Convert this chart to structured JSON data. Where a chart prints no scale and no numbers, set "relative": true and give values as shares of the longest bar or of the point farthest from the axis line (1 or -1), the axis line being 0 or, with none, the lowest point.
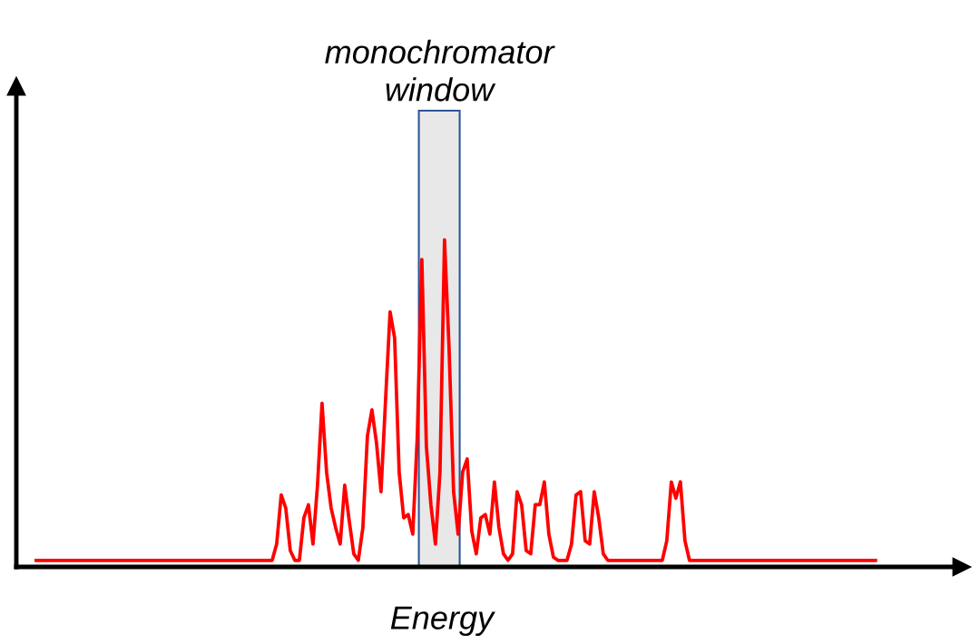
{
  "chart_data": {
    "type": "line",
    "relative": true,
    "xlabel": "Energy",
    "categories": [
      null,
      null,
      null,
      null,
      null,
      null,
      null,
      null,
      null,
      null,
      null,
      null,
      null,
      null,
      null,
      null,
      null,
      null,
      null,
      null,
      null,
      null,
      null,
      null,
      null,
      null,
      null,
      null,
      null,
      null,
      null,
      null,
      null,
      null,
      null,
      null,
      null,
      null,
      null,
      null,
      null,
      null,
      null,
      null,
      null,
      null,
      null,
      null,
      null,
      null,
      null,
      null,
      null,
      null,
      null,
      null,
      null,
      null,
      null,
      null,
      null,
      null,
      null,
      null,
      null,
      null,
      null,
      null,
      null,
      null,
      null,
      null,
      null,
      null,
      null,
      null,
      null,
      null,
      null,
      null,
      null,
      null,
      null,
      null,
      null,
      null,
      null,
      null,
      null,
      null,
      null,
      null,
      null,
      null,
      null,
      null,
      null,
      null,
      null,
      null,
      null,
      null,
      null,
      null,
      null,
      null,
      null,
      null,
      null,
      null,
      null,
      null,
      null,
      null,
      null,
      null,
      null,
      null,
      null,
      null,
      null,
      null,
      null,
      null,
      null,
      null,
      null,
      null,
      null,
      null,
      null,
      null,
      null,
      null,
      null,
      null,
      null,
      null,
      null,
      null,
      null,
      null,
      null,
      null,
      null,
      null,
      null,
      null,
      null,
      null,
      null,
      null,
      null,
      null,
      null,
      null,
      null,
      null,
      null,
      null,
      null,
      null,
      null,
      null,
      null,
      null,
      null,
      null,
      null,
      null,
      null,
      null,
      null,
      null,
      null,
      null,
      null,
      null,
      null,
      null,
      null,
      null,
      null,
      null,
      null,
      null
    ],
    "series": [
      {
        "color": "#ff0000",
        "values": [
          0.02,
          0.02,
          0.02,
          0.02,
          0.02,
          0.02,
          0.02,
          0.02,
          0.02,
          0.02,
          0.02,
          0.02,
          0.02,
          0.02,
          0.02,
          0.02,
          0.02,
          0.02,
          0.02,
          0.02,
          0.02,
          0.02,
          0.02,
          0.02,
          0.02,
          0.02,
          0.02,
          0.02,
          0.02,
          0.02,
          0.02,
          0.02,
          0.02,
          0.02,
          0.02,
          0.02,
          0.02,
          0.02,
          0.02,
          0.02,
          0.02,
          0.02,
          0.02,
          0.02,
          0.02,
          0.02,
          0.02,
          0.02,
          0.02,
          0.02,
          0.02,
          0.02,
          0.02,
          0.07,
          0.22,
          0.18,
          0.05,
          0.02,
          0.02,
          0.15,
          0.19,
          0.07,
          0.25,
          0.5,
          0.29,
          0.18,
          0.12,
          0.07,
          0.25,
          0.14,
          0.04,
          0.02,
          0.12,
          0.4,
          0.48,
          0.38,
          0.23,
          0.51,
          0.78,
          0.7,
          0.29,
          0.15,
          0.16,
          0.1,
          0.4,
          0.94,
          0.37,
          0.19,
          0.07,
          0.29,
          1.0,
          0.67,
          0.23,
          0.1,
          0.29,
          0.33,
          0.11,
          0.04,
          0.15,
          0.16,
          0.1,
          0.26,
          0.12,
          0.04,
          0.02,
          0.04,
          0.23,
          0.19,
          0.05,
          0.04,
          0.19,
          0.19,
          0.26,
          0.1,
          0.03,
          0.02,
          0.02,
          0.02,
          0.07,
          0.22,
          0.23,
          0.08,
          0.07,
          0.23,
          0.15,
          0.04,
          0.02,
          0.02,
          0.02,
          0.02,
          0.02,
          0.02,
          0.02,
          0.02,
          0.02,
          0.02,
          0.02,
          0.02,
          0.02,
          0.08,
          0.26,
          0.21,
          0.26,
          0.08,
          0.02,
          0.02,
          0.02,
          0.02,
          0.02,
          0.02,
          0.02,
          0.02,
          0.02,
          0.02,
          0.02,
          0.02,
          0.02,
          0.02,
          0.02,
          0.02,
          0.02,
          0.02,
          0.02,
          0.02,
          0.02,
          0.02,
          0.02,
          0.02,
          0.02,
          0.02,
          0.02,
          0.02,
          0.02,
          0.02,
          0.02,
          0.02,
          0.02,
          0.02,
          0.02,
          0.02,
          0.02,
          0.02,
          0.02,
          0.02,
          0.02,
          0.02
        ]
      }
    ],
    "annotations": [
      "monochromator window"
    ],
    "tick_labels": false,
    "legend": false,
    "marker": "none",
    "line_style": "solid"
  }
}
